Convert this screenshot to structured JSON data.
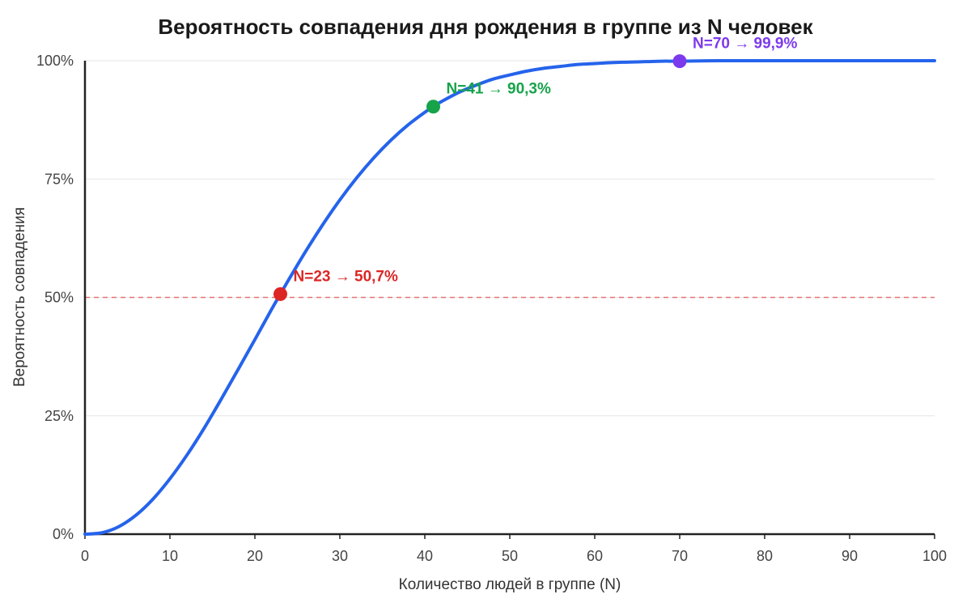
{
  "chart_data": {
    "type": "line",
    "title": "Вероятность совпадения дня рождения в группе из N человек",
    "xlabel": "Количество людей в группе (N)",
    "ylabel": "Вероятность совпадения",
    "xlim": [
      0,
      100
    ],
    "ylim": [
      0,
      100
    ],
    "x_ticks": [
      0,
      10,
      20,
      30,
      40,
      50,
      60,
      70,
      80,
      90,
      100
    ],
    "y_ticks": [
      0,
      25,
      50,
      75,
      100
    ],
    "y_tick_labels": [
      "0%",
      "25%",
      "50%",
      "75%",
      "100%"
    ],
    "grid": "horizontal",
    "reference_line": {
      "y": 50,
      "color": "#e57373",
      "style": "dashed"
    },
    "series": [
      {
        "color": "#2563eb",
        "x": [
          0,
          2,
          4,
          6,
          8,
          10,
          12,
          14,
          16,
          18,
          20,
          22,
          23,
          24,
          26,
          28,
          30,
          32,
          34,
          36,
          38,
          40,
          41,
          42,
          44,
          46,
          48,
          50,
          52,
          54,
          56,
          58,
          60,
          62,
          64,
          66,
          68,
          70,
          75,
          80,
          85,
          90,
          95,
          100
        ],
        "y": [
          0,
          0.3,
          1.6,
          4.0,
          7.4,
          11.7,
          16.7,
          22.3,
          28.4,
          34.7,
          41.1,
          47.6,
          50.7,
          53.8,
          59.8,
          65.4,
          70.6,
          75.3,
          79.5,
          83.2,
          86.4,
          89.1,
          90.3,
          91.4,
          93.3,
          94.8,
          96.1,
          97.0,
          97.8,
          98.4,
          98.8,
          99.2,
          99.4,
          99.6,
          99.7,
          99.8,
          99.9,
          99.9,
          100,
          100,
          100,
          100,
          100,
          100
        ]
      }
    ],
    "annotations": [
      {
        "x": 23,
        "y": 50.7,
        "label": "N=23 → 50,7%",
        "color": "#dc2626"
      },
      {
        "x": 41,
        "y": 90.3,
        "label": "N=41 → 90,3%",
        "color": "#16a34a"
      },
      {
        "x": 70,
        "y": 99.9,
        "label": "N=70 → 99,9%",
        "color": "#7c3aed"
      }
    ]
  }
}
